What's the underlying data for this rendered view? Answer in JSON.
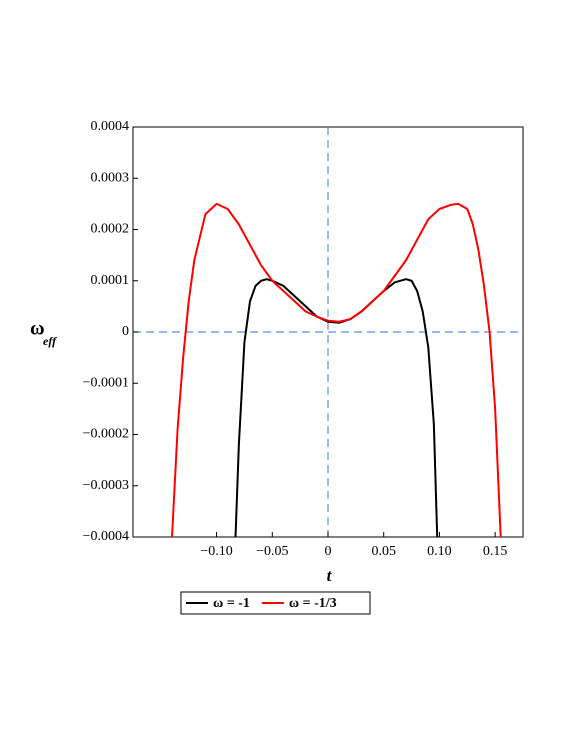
{
  "chart_data": {
    "type": "line",
    "x_label": "t",
    "y_label": "ω",
    "y_label_sub": "eff",
    "xlim": [
      -0.175,
      0.175
    ],
    "ylim": [
      -0.0004,
      0.0004
    ],
    "xticks": [
      {
        "value": -0.1,
        "label": "−0.10"
      },
      {
        "value": -0.05,
        "label": "−0.05"
      },
      0,
      0.05,
      {
        "value": 0.1,
        "label": "0.10"
      },
      0.15
    ],
    "yticks": [
      {
        "value": -0.0004,
        "label": "−0.0004"
      },
      {
        "value": -0.0003,
        "label": "−0.0003"
      },
      {
        "value": -0.0002,
        "label": "−0.0002"
      },
      {
        "value": -0.0001,
        "label": "−0.0001"
      },
      0,
      0.0001,
      0.0002,
      0.0003,
      0.0004
    ],
    "series": [
      {
        "name": "ω = -1",
        "color": "#000000",
        "x": [
          -0.083,
          -0.08,
          -0.077,
          -0.075,
          -0.07,
          -0.065,
          -0.06,
          -0.055,
          -0.05,
          -0.04,
          -0.03,
          -0.02,
          -0.01,
          0,
          0.01,
          0.02,
          0.03,
          0.04,
          0.05,
          0.06,
          0.07,
          0.075,
          0.08,
          0.085,
          0.09,
          0.095,
          0.098
        ],
        "values": [
          -0.0004,
          -0.00022,
          -0.0001,
          -2e-05,
          6e-05,
          9e-05,
          0.0001,
          0.000103,
          0.0001,
          9e-05,
          7e-05,
          5e-05,
          3e-05,
          2e-05,
          1.8e-05,
          2.5e-05,
          4e-05,
          6e-05,
          8e-05,
          9.7e-05,
          0.000103,
          0.0001,
          8e-05,
          4e-05,
          -3e-05,
          -0.00018,
          -0.0004
        ]
      },
      {
        "name": "ω = -1/3",
        "color": "#ff0000",
        "x": [
          -0.14,
          -0.135,
          -0.13,
          -0.125,
          -0.12,
          -0.11,
          -0.1,
          -0.09,
          -0.08,
          -0.07,
          -0.06,
          -0.05,
          -0.04,
          -0.03,
          -0.02,
          -0.01,
          0,
          0.01,
          0.02,
          0.03,
          0.04,
          0.05,
          0.06,
          0.07,
          0.08,
          0.09,
          0.1,
          0.11,
          0.117,
          0.125,
          0.13,
          0.135,
          0.14,
          0.145,
          0.15,
          0.155
        ],
        "values": [
          -0.0004,
          -0.00019,
          -5e-05,
          6e-05,
          0.00014,
          0.00023,
          0.00025,
          0.00024,
          0.00021,
          0.00017,
          0.00013,
          0.0001,
          8e-05,
          6e-05,
          4e-05,
          3e-05,
          2.2e-05,
          2e-05,
          2.5e-05,
          4e-05,
          6e-05,
          8e-05,
          0.00011,
          0.00014,
          0.00018,
          0.00022,
          0.00024,
          0.000248,
          0.00025,
          0.00024,
          0.00021,
          0.00016,
          9e-05,
          0,
          -0.00015,
          -0.0004
        ]
      }
    ]
  }
}
